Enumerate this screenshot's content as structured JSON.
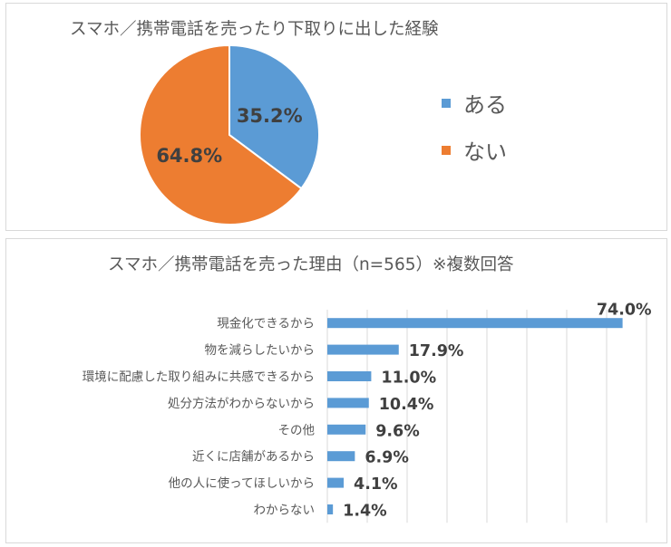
{
  "colors": {
    "blue": "#5b9bd5",
    "orange": "#ed7d31",
    "label_dark": "#404040",
    "grid": "#d9d9d9"
  },
  "chart_data": [
    {
      "type": "pie",
      "title": "スマホ／携帯電話を売ったり下取りに出した経験",
      "slices": [
        {
          "label": "ある",
          "value": 35.2,
          "data_label": "35.2%",
          "color": "#5b9bd5"
        },
        {
          "label": "ない",
          "value": 64.8,
          "data_label": "64.8%",
          "color": "#ed7d31"
        }
      ],
      "legend_position": "right"
    },
    {
      "type": "bar",
      "orientation": "horizontal",
      "title": "スマホ／携帯電話を売った理由（n=565）※複数回答",
      "categories": [
        "現金化できるから",
        "物を減らしたいから",
        "環境に配慮した取り組みに共感できるから",
        "処分方法がわからないから",
        "その他",
        "近くに店舗があるから",
        "他の人に使ってほしいから",
        "わからない"
      ],
      "values": [
        74.0,
        17.9,
        11.0,
        10.4,
        9.6,
        6.9,
        4.1,
        1.4
      ],
      "data_labels": [
        "74.0%",
        "17.9%",
        "11.0%",
        "10.4%",
        "9.6%",
        "6.9%",
        "4.1%",
        "1.4%"
      ],
      "xlim": [
        0,
        80
      ],
      "grid": true,
      "color": "#5b9bd5"
    }
  ]
}
